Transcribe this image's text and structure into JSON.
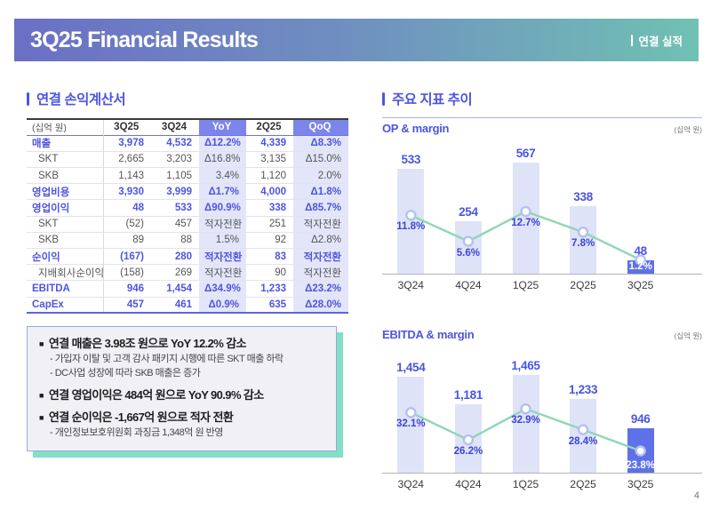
{
  "colors": {
    "accent": "#4d55e0",
    "chg_header_bg": "#7b85ea",
    "chg_cell_bg": "#e3e6fa",
    "bar": "#dfe3f8",
    "bar_highlight": "#5e71e8",
    "line": "#8fd6b4",
    "marker_stroke": "#b3c1ee",
    "banner_left": "#6b6fc5",
    "banner_right": "#70c1b3",
    "note_border": "#9aa3ec",
    "note_shadow": "#82e0c4"
  },
  "banner": {
    "title": "3Q25 Financial Results",
    "tag": "연결 실적"
  },
  "income_statement": {
    "section_title": "연결 손익계산서",
    "columns": [
      "(십억 원)",
      "3Q25",
      "3Q24",
      "YoY",
      "2Q25",
      "QoQ"
    ],
    "rows": [
      {
        "label": "매출",
        "bold": true,
        "cells": [
          "3,978",
          "4,532",
          "Δ12.2%",
          "4,339",
          "Δ8.3%"
        ]
      },
      {
        "label": "SKT",
        "bold": false,
        "cells": [
          "2,665",
          "3,203",
          "Δ16.8%",
          "3,135",
          "Δ15.0%"
        ]
      },
      {
        "label": "SKB",
        "bold": false,
        "cells": [
          "1,143",
          "1,105",
          "3.4%",
          "1,120",
          "2.0%"
        ]
      },
      {
        "label": "영업비용",
        "bold": true,
        "cells": [
          "3,930",
          "3,999",
          "Δ1.7%",
          "4,000",
          "Δ1.8%"
        ]
      },
      {
        "label": "영업이익",
        "bold": true,
        "cells": [
          "48",
          "533",
          "Δ90.9%",
          "338",
          "Δ85.7%"
        ]
      },
      {
        "label": "SKT",
        "bold": false,
        "cells": [
          "(52)",
          "457",
          "적자전환",
          "251",
          "적자전환"
        ]
      },
      {
        "label": "SKB",
        "bold": false,
        "cells": [
          "89",
          "88",
          "1.5%",
          "92",
          "Δ2.8%"
        ]
      },
      {
        "label": "순이익",
        "bold": true,
        "cells": [
          "(167)",
          "280",
          "적자전환",
          "83",
          "적자전환"
        ]
      },
      {
        "label": "지배회사순이익",
        "bold": false,
        "cells": [
          "(158)",
          "269",
          "적자전환",
          "90",
          "적자전환"
        ]
      },
      {
        "label": "EBITDA",
        "bold": true,
        "cells": [
          "946",
          "1,454",
          "Δ34.9%",
          "1,233",
          "Δ23.2%"
        ]
      },
      {
        "label": "CapEx",
        "bold": true,
        "cells": [
          "457",
          "461",
          "Δ0.9%",
          "635",
          "Δ28.0%"
        ]
      }
    ]
  },
  "highlights": {
    "marker": "■",
    "items": [
      {
        "text": "연결 매출은 3.98조 원으로 YoY 12.2% 감소",
        "subs": [
          "- 가입자 이탈 및 고객 감사 패키지 시행에 따른 SKT 매출 하락",
          "- DC사업 성장에 따라 SKB 매출은 증가"
        ]
      },
      {
        "text": "연결 영업이익은 484억 원으로 YoY 90.9% 감소",
        "subs": []
      },
      {
        "text": "연결 순이익은 -1,667억 원으로 적자 전환",
        "subs": [
          "- 개인정보보호위원회 과징금 1,348억 원 반영"
        ]
      }
    ]
  },
  "metrics": {
    "section_title": "주요 지표 추이"
  },
  "chart_data": [
    {
      "type": "bar",
      "title": "OP & margin",
      "unit_label": "(십억 원)",
      "categories": [
        "3Q24",
        "4Q24",
        "1Q25",
        "2Q25",
        "3Q25"
      ],
      "series": [
        {
          "name": "OP",
          "type": "bar",
          "values": [
            533,
            254,
            567,
            338,
            48
          ],
          "labels": [
            "533",
            "254",
            "567",
            "338",
            "48"
          ]
        },
        {
          "name": "margin",
          "type": "line",
          "values": [
            11.8,
            5.6,
            12.7,
            7.8,
            1.2
          ],
          "labels": [
            "11.8%",
            "5.6%",
            "12.7%",
            "7.8%",
            "1.2%"
          ]
        }
      ],
      "highlight_index": 4,
      "bar_axis": {
        "min": -23,
        "max": 644
      },
      "line_axis": {
        "min": -2.3,
        "max": 27.5
      },
      "grid": false,
      "legend": false
    },
    {
      "type": "bar",
      "title": "EBITDA & margin",
      "unit_label": "(십억 원)",
      "categories": [
        "3Q24",
        "4Q24",
        "1Q25",
        "2Q25",
        "3Q25"
      ],
      "series": [
        {
          "name": "EBITDA",
          "type": "bar",
          "values": [
            1454,
            1181,
            1465,
            1233,
            946
          ],
          "labels": [
            "1,454",
            "1,181",
            "1,465",
            "1,233",
            "946"
          ]
        },
        {
          "name": "margin",
          "type": "line",
          "values": [
            32.1,
            26.2,
            32.9,
            28.4,
            23.8
          ],
          "labels": [
            "32.1%",
            "26.2%",
            "32.9%",
            "28.4%",
            "23.8%"
          ]
        }
      ],
      "highlight_index": 4,
      "bar_axis": {
        "min": 504,
        "max": 1741
      },
      "line_axis": {
        "min": 18.9,
        "max": 46.0
      },
      "grid": false,
      "legend": false
    }
  ],
  "page_number": "4"
}
